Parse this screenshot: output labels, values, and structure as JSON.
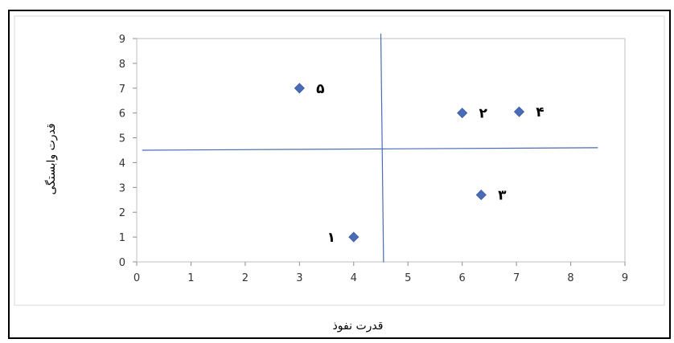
{
  "chart_data": {
    "type": "scatter",
    "xlabel": "قدرت نفوذ",
    "ylabel": "قدرت وابستگی",
    "xlim": [
      0,
      9
    ],
    "ylim": [
      0,
      9
    ],
    "xticks": [
      "0",
      "1",
      "2",
      "3",
      "4",
      "5",
      "6",
      "7",
      "8",
      "9"
    ],
    "yticks": [
      "0",
      "1",
      "2",
      "3",
      "4",
      "5",
      "6",
      "7",
      "8",
      "9"
    ],
    "grid": false,
    "marker_color": "#4a6bb5",
    "divider_color": "#4a6bb5",
    "points": [
      {
        "x": 4.0,
        "y": 1.0,
        "label": "۱",
        "label_side": "left"
      },
      {
        "x": 6.0,
        "y": 6.0,
        "label": "۲",
        "label_side": "right"
      },
      {
        "x": 6.35,
        "y": 2.7,
        "label": "۳",
        "label_side": "right"
      },
      {
        "x": 7.05,
        "y": 6.05,
        "label": "۴",
        "label_side": "right"
      },
      {
        "x": 3.0,
        "y": 7.0,
        "label": "۵",
        "label_side": "right"
      }
    ],
    "dividers": {
      "horizontal": {
        "x1": 0.1,
        "y1": 4.5,
        "x2": 8.5,
        "y2": 4.6
      },
      "vertical": {
        "x1": 4.5,
        "y1": 9.2,
        "x2": 4.55,
        "y2": -0.02
      }
    }
  }
}
